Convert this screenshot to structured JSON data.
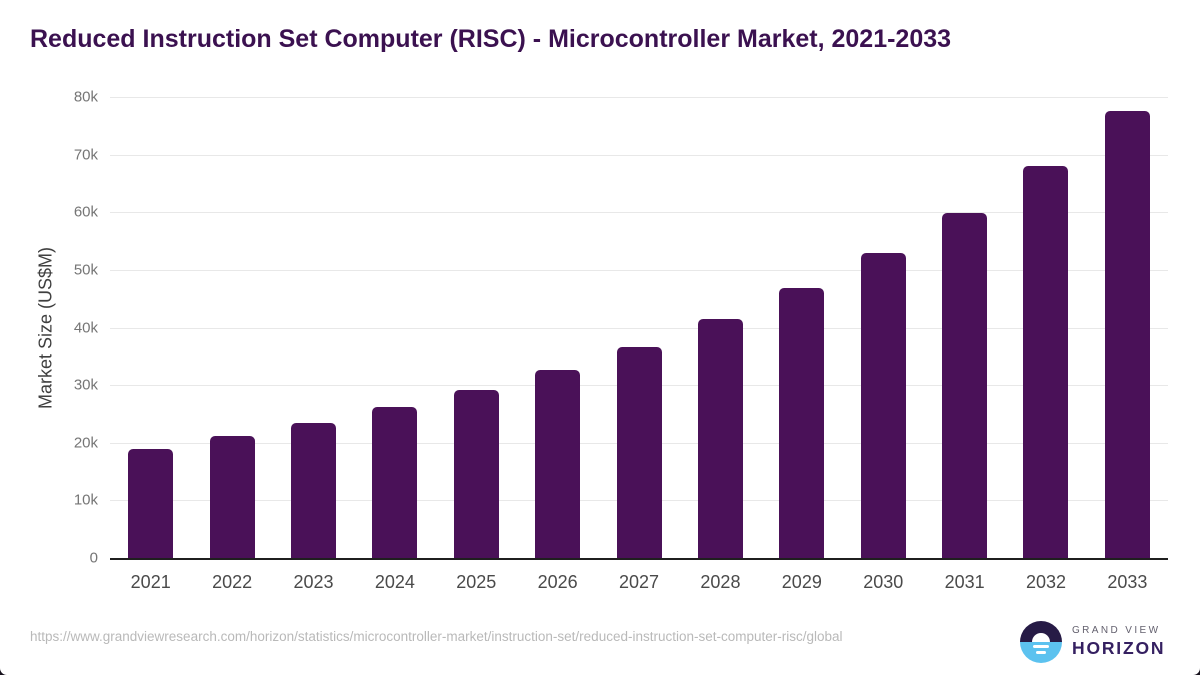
{
  "header": {
    "title": "Reduced Instruction Set Computer (RISC) - Microcontroller Market, 2021-2033"
  },
  "chart_data": {
    "type": "bar",
    "title": "Reduced Instruction Set Computer (RISC) - Microcontroller Market, 2021-2033",
    "categories": [
      "2021",
      "2022",
      "2023",
      "2024",
      "2025",
      "2026",
      "2027",
      "2028",
      "2029",
      "2030",
      "2031",
      "2032",
      "2033"
    ],
    "values": [
      19000,
      21200,
      23400,
      26200,
      29200,
      32700,
      36700,
      41400,
      46800,
      53000,
      59900,
      68000,
      77500
    ],
    "xlabel": "",
    "ylabel": "Market Size (US$M)",
    "ylim": [
      0,
      80000
    ],
    "ytick_step": 10000,
    "ytick_labels": [
      "0",
      "10k",
      "20k",
      "30k",
      "40k",
      "50k",
      "60k",
      "70k",
      "80k"
    ],
    "grid": "horizontal",
    "legend": "none",
    "bar_color": "#4a1158"
  },
  "footer": {
    "source_url": "https://www.grandviewresearch.com/horizon/statistics/microcontroller-market/instruction-set/reduced-instruction-set-computer-risc/global",
    "logo": {
      "top_text": "GRAND VIEW",
      "bottom_text": "HORIZON"
    }
  },
  "colors": {
    "bar": "#4a1158",
    "title": "#3b1150",
    "axis_line": "#1f1f1f",
    "gridline": "#e8e8e8",
    "ytick_text": "#757575",
    "xtick_text": "#4a4a4a",
    "source_text": "#b9b9b9",
    "logo_navy": "#271b46",
    "logo_blue": "#5cc2ef",
    "logo_text": "#352061"
  }
}
